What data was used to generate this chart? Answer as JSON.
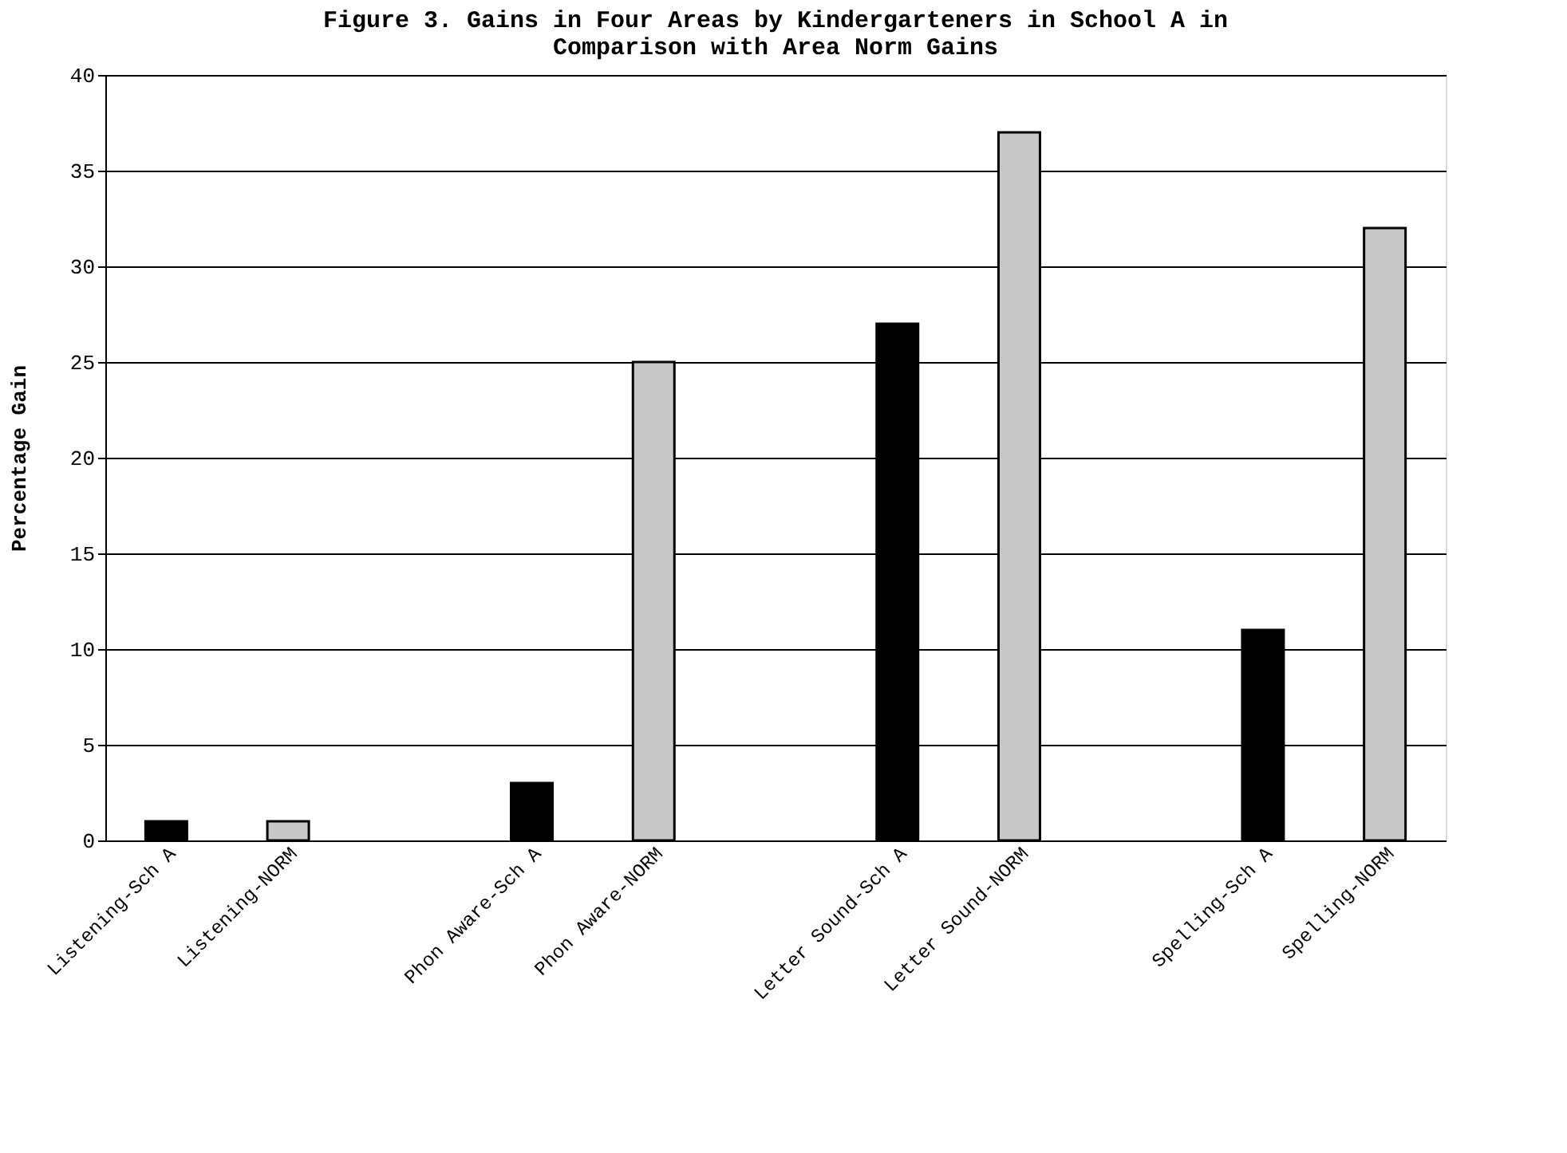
{
  "chart_data": {
    "type": "bar",
    "title": [
      "Figure 3. Gains in Four Areas by Kindergarteners in School A in",
      "Comparison with Area Norm Gains"
    ],
    "ylabel": "Percentage Gain",
    "categories": [
      "Listening-Sch A",
      "Listening-NORM",
      null,
      "Phon Aware-Sch A",
      "Phon Aware-NORM",
      null,
      "Letter Sound-Sch A",
      "Letter Sound-NORM",
      null,
      "Spelling-Sch A",
      "Spelling-NORM"
    ],
    "values": [
      1,
      1,
      null,
      3,
      25,
      null,
      27,
      37,
      null,
      11,
      32
    ],
    "colors": [
      "#000000",
      "#c8c8c8",
      null,
      "#000000",
      "#c8c8c8",
      null,
      "#000000",
      "#c8c8c8",
      null,
      "#000000",
      "#c8c8c8"
    ],
    "ylim": [
      0,
      40
    ],
    "yticks": [
      0,
      5,
      10,
      15,
      20,
      25,
      30,
      35,
      40
    ],
    "grid": "y"
  }
}
